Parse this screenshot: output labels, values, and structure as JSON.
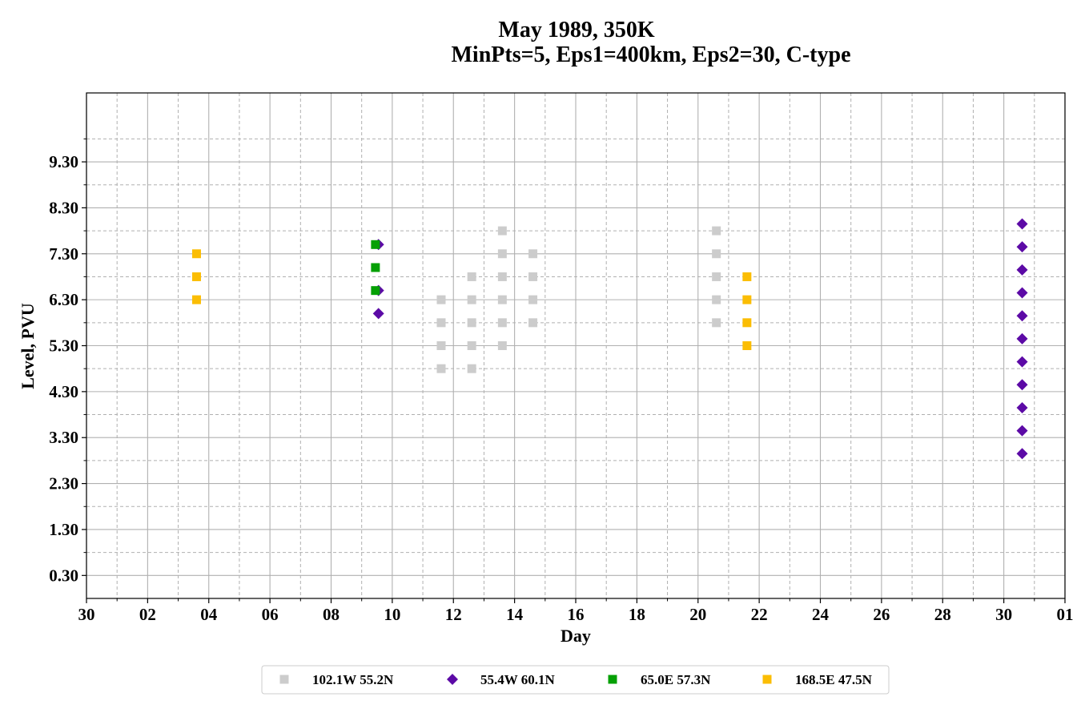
{
  "chart_data": {
    "type": "scatter",
    "title": "May 1989, 350K",
    "subtitle": "MinPts=5, Eps1=400km, Eps2=30, C-type",
    "xlabel": "Day",
    "ylabel": "Level, PVU",
    "x_unit": "day of month (axis spans 30 Apr 1989 to 1 Jun 1989)",
    "xlim": [
      30,
      62
    ],
    "x_ticks": [
      {
        "value": 30,
        "label": "30"
      },
      {
        "value": 32,
        "label": "02"
      },
      {
        "value": 34,
        "label": "04"
      },
      {
        "value": 36,
        "label": "06"
      },
      {
        "value": 38,
        "label": "08"
      },
      {
        "value": 40,
        "label": "10"
      },
      {
        "value": 42,
        "label": "12"
      },
      {
        "value": 44,
        "label": "14"
      },
      {
        "value": 46,
        "label": "16"
      },
      {
        "value": 48,
        "label": "18"
      },
      {
        "value": 50,
        "label": "20"
      },
      {
        "value": 52,
        "label": "22"
      },
      {
        "value": 54,
        "label": "24"
      },
      {
        "value": 56,
        "label": "26"
      },
      {
        "value": 58,
        "label": "28"
      },
      {
        "value": 60,
        "label": "30"
      },
      {
        "value": 62,
        "label": "01"
      }
    ],
    "ylim": [
      -0.2,
      10.8
    ],
    "y_ticks": [
      {
        "value": 0.3,
        "label": "0.30"
      },
      {
        "value": 1.3,
        "label": "1.30"
      },
      {
        "value": 2.3,
        "label": "2.30"
      },
      {
        "value": 3.3,
        "label": "3.30"
      },
      {
        "value": 4.3,
        "label": "4.30"
      },
      {
        "value": 5.3,
        "label": "5.30"
      },
      {
        "value": 6.3,
        "label": "6.30"
      },
      {
        "value": 7.3,
        "label": "7.30"
      },
      {
        "value": 8.3,
        "label": "8.30"
      },
      {
        "value": 9.3,
        "label": "9.30"
      }
    ],
    "grid": true,
    "legend_position": "bottom-center",
    "series": [
      {
        "name": "102.1W 55.2N",
        "marker": "square",
        "color": "#cccccc",
        "points": [
          {
            "x": 41.6,
            "y": 4.8
          },
          {
            "x": 41.6,
            "y": 5.3
          },
          {
            "x": 41.6,
            "y": 5.8
          },
          {
            "x": 41.6,
            "y": 6.3
          },
          {
            "x": 42.6,
            "y": 4.8
          },
          {
            "x": 42.6,
            "y": 5.3
          },
          {
            "x": 42.6,
            "y": 5.8
          },
          {
            "x": 42.6,
            "y": 6.3
          },
          {
            "x": 42.6,
            "y": 6.8
          },
          {
            "x": 43.6,
            "y": 5.3
          },
          {
            "x": 43.6,
            "y": 5.8
          },
          {
            "x": 43.6,
            "y": 6.3
          },
          {
            "x": 43.6,
            "y": 6.8
          },
          {
            "x": 43.6,
            "y": 7.3
          },
          {
            "x": 43.6,
            "y": 7.8
          },
          {
            "x": 44.6,
            "y": 5.8
          },
          {
            "x": 44.6,
            "y": 6.3
          },
          {
            "x": 44.6,
            "y": 6.8
          },
          {
            "x": 44.6,
            "y": 7.3
          },
          {
            "x": 50.6,
            "y": 5.8
          },
          {
            "x": 50.6,
            "y": 6.3
          },
          {
            "x": 50.6,
            "y": 6.8
          },
          {
            "x": 50.6,
            "y": 7.3
          },
          {
            "x": 50.6,
            "y": 7.8
          }
        ]
      },
      {
        "name": "55.4W 60.1N",
        "marker": "diamond",
        "color": "#5c0aa6",
        "points": [
          {
            "x": 39.55,
            "y": 6.0
          },
          {
            "x": 39.55,
            "y": 6.5
          },
          {
            "x": 39.55,
            "y": 7.5
          },
          {
            "x": 60.6,
            "y": 2.95
          },
          {
            "x": 60.6,
            "y": 3.45
          },
          {
            "x": 60.6,
            "y": 3.95
          },
          {
            "x": 60.6,
            "y": 4.45
          },
          {
            "x": 60.6,
            "y": 4.95
          },
          {
            "x": 60.6,
            "y": 5.45
          },
          {
            "x": 60.6,
            "y": 5.95
          },
          {
            "x": 60.6,
            "y": 6.45
          },
          {
            "x": 60.6,
            "y": 6.95
          },
          {
            "x": 60.6,
            "y": 7.45
          },
          {
            "x": 60.6,
            "y": 7.95
          }
        ]
      },
      {
        "name": "65.0E 57.3N",
        "marker": "square",
        "color": "#05a005",
        "points": [
          {
            "x": 39.45,
            "y": 6.5
          },
          {
            "x": 39.45,
            "y": 7.0
          },
          {
            "x": 39.45,
            "y": 7.5
          }
        ]
      },
      {
        "name": "168.5E 47.5N",
        "marker": "square",
        "color": "#fbbd04",
        "points": [
          {
            "x": 33.6,
            "y": 6.3
          },
          {
            "x": 33.6,
            "y": 6.8
          },
          {
            "x": 33.6,
            "y": 7.3
          },
          {
            "x": 51.6,
            "y": 5.3
          },
          {
            "x": 51.6,
            "y": 5.8
          },
          {
            "x": 51.6,
            "y": 6.3
          },
          {
            "x": 51.6,
            "y": 6.8
          }
        ]
      }
    ]
  }
}
